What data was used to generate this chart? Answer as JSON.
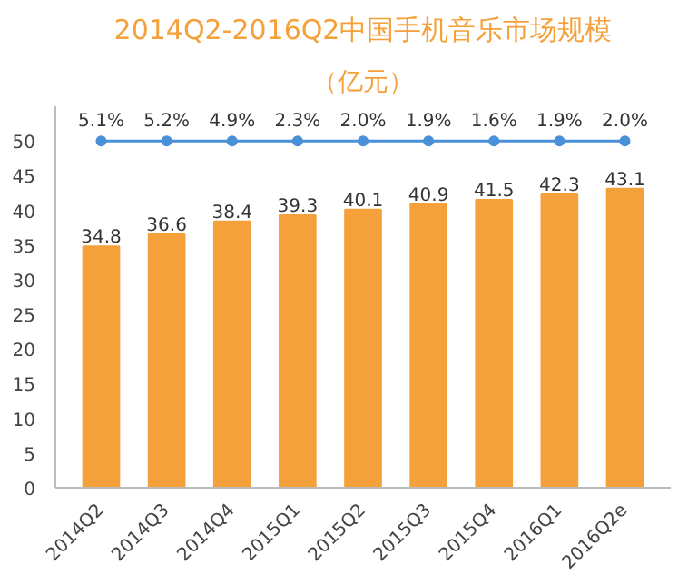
{
  "chart_data": {
    "type": "bar",
    "title": "2014Q2-2016Q2中国手机音乐市场规模",
    "subtitle": "（亿元）",
    "categories": [
      "2014Q2",
      "2014Q3",
      "2014Q4",
      "2015Q1",
      "2015Q2",
      "2015Q3",
      "2015Q4",
      "2016Q1",
      "2016Q2e"
    ],
    "series": [
      {
        "color": "#f5a13b",
        "values": [
          34.8,
          36.6,
          38.4,
          39.3,
          40.1,
          40.9,
          41.5,
          42.3,
          43.1
        ],
        "value_labels": [
          "34.8",
          "36.6",
          "38.4",
          "39.3",
          "40.1",
          "40.9",
          "41.5",
          "42.3",
          "43.1"
        ]
      }
    ],
    "ref_lines": [
      {
        "axis": "y",
        "value": 50,
        "color": "#4a90d9",
        "line_style": "solid"
      }
    ],
    "annotations": [
      {
        "text": "5.1%",
        "x": "2014Q2",
        "y": 50
      },
      {
        "text": "5.2%",
        "x": "2014Q3",
        "y": 50
      },
      {
        "text": "4.9%",
        "x": "2014Q4",
        "y": 50
      },
      {
        "text": "2.3%",
        "x": "2015Q1",
        "y": 50
      },
      {
        "text": "2.0%",
        "x": "2015Q2",
        "y": 50
      },
      {
        "text": "1.9%",
        "x": "2015Q3",
        "y": 50
      },
      {
        "text": "1.6%",
        "x": "2015Q4",
        "y": 50
      },
      {
        "text": "1.9%",
        "x": "2016Q1",
        "y": 50
      },
      {
        "text": "2.0%",
        "x": "2016Q2e",
        "y": 50
      }
    ],
    "ylim": [
      0,
      55
    ],
    "yticks": [
      0,
      5,
      10,
      15,
      20,
      25,
      30,
      35,
      40,
      45,
      50
    ],
    "grid": false
  }
}
